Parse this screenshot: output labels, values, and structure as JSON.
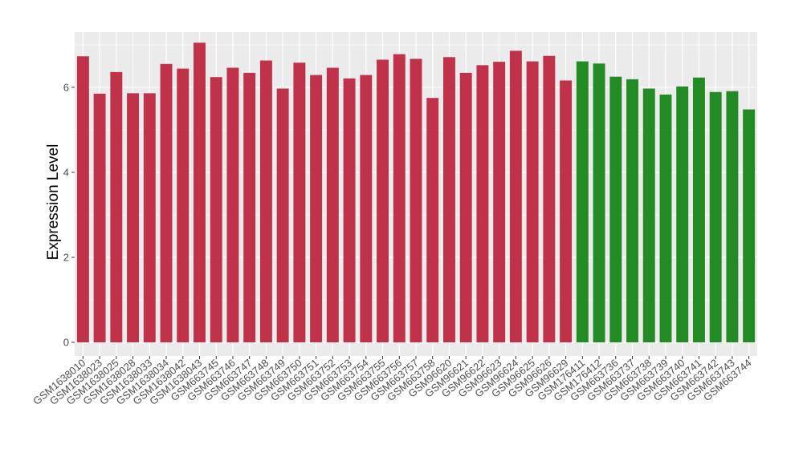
{
  "chart_data": {
    "type": "bar",
    "title": "",
    "xlabel": "",
    "ylabel": "Expression Level",
    "ylim": [
      -0.32,
      7.3
    ],
    "yticks": [
      0,
      2,
      4,
      6
    ],
    "grid": true,
    "legend": "none",
    "colors": {
      "red": "#C0314A",
      "green": "#238B23",
      "panel": "#EBEBEB",
      "grid": "#FFFFFF"
    },
    "categories": [
      "GSM1638010",
      "GSM1638023",
      "GSM1638025",
      "GSM1638028",
      "GSM1638033",
      "GSM1638034",
      "GSM1638042",
      "GSM1638043",
      "GSM663745",
      "GSM663746",
      "GSM663747",
      "GSM663748",
      "GSM663749",
      "GSM663750",
      "GSM663751",
      "GSM663752",
      "GSM663753",
      "GSM663754",
      "GSM663755",
      "GSM663756",
      "GSM663757",
      "GSM663758",
      "GSM96620",
      "GSM96621",
      "GSM96622",
      "GSM96623",
      "GSM96624",
      "GSM96625",
      "GSM96626",
      "GSM96629",
      "GSM176411",
      "GSM176412",
      "GSM663736",
      "GSM663737",
      "GSM663738",
      "GSM663739",
      "GSM663740",
      "GSM663741",
      "GSM663742",
      "GSM663743",
      "GSM663744"
    ],
    "values": [
      6.73,
      5.85,
      6.36,
      5.86,
      5.86,
      6.55,
      6.44,
      7.05,
      6.24,
      6.46,
      6.34,
      6.63,
      5.97,
      6.58,
      6.29,
      6.46,
      6.21,
      6.29,
      6.65,
      6.78,
      6.67,
      5.75,
      6.71,
      6.34,
      6.52,
      6.6,
      6.86,
      6.61,
      6.74,
      6.16,
      6.61,
      6.56,
      6.25,
      6.19,
      5.97,
      5.83,
      6.02,
      6.23,
      5.89,
      5.91,
      5.48
    ],
    "bar_colors": [
      "red",
      "red",
      "red",
      "red",
      "red",
      "red",
      "red",
      "red",
      "red",
      "red",
      "red",
      "red",
      "red",
      "red",
      "red",
      "red",
      "red",
      "red",
      "red",
      "red",
      "red",
      "red",
      "red",
      "red",
      "red",
      "red",
      "red",
      "red",
      "red",
      "red",
      "green",
      "green",
      "green",
      "green",
      "green",
      "green",
      "green",
      "green",
      "green",
      "green",
      "green"
    ]
  }
}
